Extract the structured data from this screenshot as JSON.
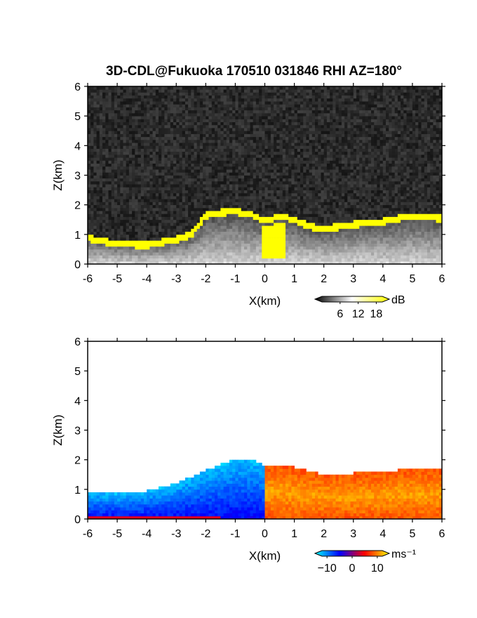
{
  "figure": {
    "title": "3D-CDL@Fukuoka 170510 031846 RHI AZ=180°"
  },
  "chart_data": [
    {
      "type": "heatmap",
      "panel": "reflectivity",
      "xlabel": "X(km)",
      "ylabel": "Z(km)",
      "xlim": [
        -6,
        6
      ],
      "ylim": [
        0,
        6
      ],
      "x_ticks": [
        "-6",
        "-5",
        "-4",
        "-3",
        "-2",
        "-1",
        "0",
        "1",
        "2",
        "3",
        "4",
        "5",
        "6"
      ],
      "y_ticks": [
        "0",
        "1",
        "2",
        "3",
        "4",
        "5",
        "6"
      ],
      "colorbar": {
        "unit": "dB",
        "ticks": [
          "6",
          "12",
          "18"
        ],
        "tick_values": [
          6,
          12,
          18
        ],
        "range": [
          0,
          20
        ],
        "colors": [
          "#000000",
          "#ffffff",
          "#ffff00"
        ]
      },
      "background": "noise",
      "echo_top_profile": {
        "x": [
          -6,
          -5,
          -4,
          -3,
          -2.5,
          -2,
          -1.5,
          -1,
          -0.5,
          0,
          0.5,
          1,
          1.5,
          2,
          3,
          4,
          5,
          6
        ],
        "z": [
          1.0,
          0.8,
          0.75,
          0.95,
          1.1,
          1.75,
          1.85,
          1.9,
          1.8,
          1.55,
          1.75,
          1.6,
          1.4,
          1.3,
          1.45,
          1.55,
          1.75,
          1.65
        ]
      },
      "high_echo_color": "#ffff00"
    },
    {
      "type": "heatmap",
      "panel": "doppler velocity",
      "xlabel": "X(km)",
      "ylabel": "Z(km)",
      "xlim": [
        -6,
        6
      ],
      "ylim": [
        0,
        6
      ],
      "x_ticks": [
        "-6",
        "-5",
        "-4",
        "-3",
        "-2",
        "-1",
        "0",
        "1",
        "2",
        "3",
        "4",
        "5",
        "6"
      ],
      "y_ticks": [
        "0",
        "1",
        "2",
        "3",
        "4",
        "5",
        "6"
      ],
      "colorbar": {
        "unit": "ms⁻¹",
        "ticks": [
          "−10",
          "0",
          "10"
        ],
        "tick_values": [
          -10,
          0,
          10
        ],
        "range": [
          -12,
          12
        ],
        "colors": [
          "#00ffff",
          "#0000ff",
          "#ff0000",
          "#ffff00"
        ]
      },
      "velocity_sign": {
        "x_below_0": "negative (blue)",
        "x_above_0": "positive (orange)"
      },
      "echo_top_profile": {
        "x": [
          -5.5,
          -5,
          -4,
          -3,
          -2,
          -1.5,
          -1,
          -0.5,
          0,
          0.5,
          1,
          2,
          3,
          4,
          5,
          6
        ],
        "z": [
          0.9,
          0.85,
          0.95,
          1.2,
          1.65,
          1.85,
          2.0,
          2.05,
          1.8,
          1.85,
          1.75,
          1.5,
          1.55,
          1.6,
          1.7,
          1.65
        ]
      }
    }
  ]
}
